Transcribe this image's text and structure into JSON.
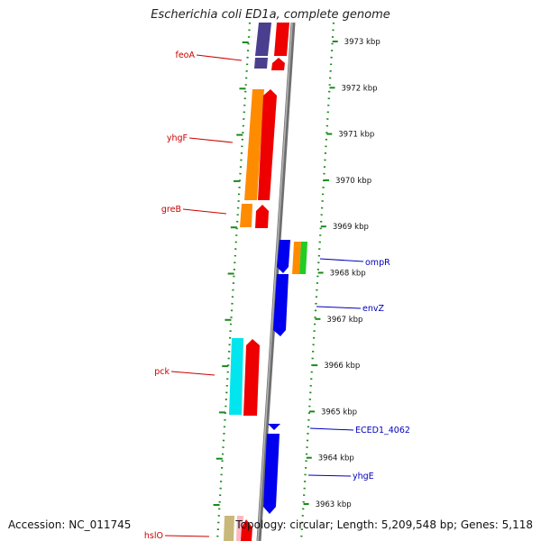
{
  "title": "Escherichia coli ED1a, complete genome",
  "footer": {
    "accession": "Accession: NC_011745",
    "topology": "Topology: circular; Length: 5,209,548 bp; Genes: 5,118"
  },
  "colors": {
    "reverse_label": "#cc0000",
    "forward_label": "#0000bb",
    "tick": "#1a8a1a",
    "backbone": "#888888"
  },
  "ticks": [
    {
      "label": "3973 kbp"
    },
    {
      "label": "3972 kbp"
    },
    {
      "label": "3971 kbp"
    },
    {
      "label": "3970 kbp"
    },
    {
      "label": "3969 kbp"
    },
    {
      "label": "3968 kbp"
    },
    {
      "label": "3967 kbp"
    },
    {
      "label": "3966 kbp"
    },
    {
      "label": "3965 kbp"
    },
    {
      "label": "3964 kbp"
    },
    {
      "label": "3963 kbp"
    }
  ],
  "genes_reverse": [
    {
      "label": "feoA",
      "color": "#4a3f8f"
    },
    {
      "label": "yhgF",
      "color": "#ff8c00"
    },
    {
      "label": "greB",
      "color": "#ff8c00"
    },
    {
      "label": "pck",
      "color": "#00e5ee"
    },
    {
      "label": "hslO",
      "color": "#c8b87a"
    }
  ],
  "genes_forward": [
    {
      "label": "ompR",
      "color": "#0000ee"
    },
    {
      "label": "envZ",
      "color": "#0000ee"
    },
    {
      "label": "ECED1_4062",
      "color": "#0000ee"
    },
    {
      "label": "yhgE",
      "color": "#0000ee"
    }
  ]
}
